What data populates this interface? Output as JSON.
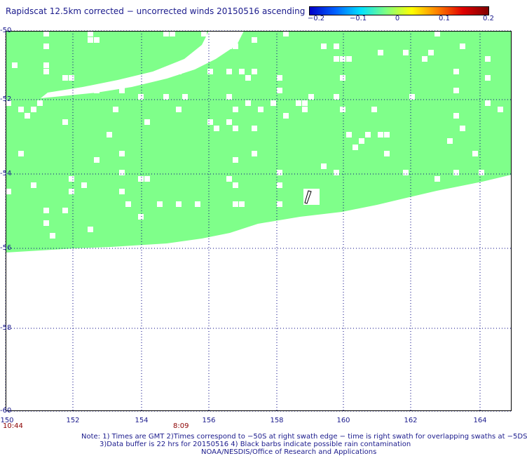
{
  "title": "Rapidscat 12.5km corrected − uncorrected winds 20150516 ascending",
  "colorbar": {
    "ticks": [
      "−0.2",
      "−0.1",
      "0",
      "0.1",
      "0.2"
    ],
    "colors": [
      "#0000c8",
      "#0060ff",
      "#00e0ff",
      "#80ff80",
      "#ffff00",
      "#ff8000",
      "#e00000",
      "#800000"
    ]
  },
  "map": {
    "lon_range": [
      150,
      165
    ],
    "lat_range": [
      -60,
      -50
    ],
    "lat_labels": [
      "-50",
      "-52",
      "-54",
      "-56",
      "-58",
      "-60"
    ],
    "lon_labels": [
      "150",
      "152",
      "154",
      "156",
      "158",
      "160",
      "162",
      "164"
    ],
    "swath_color": "#7fff8a",
    "grid_color": "#000080",
    "times": [
      {
        "lon": 150,
        "label": "10:44"
      },
      {
        "lon": 155,
        "label": "8:09"
      }
    ],
    "rain_barb": {
      "lon": 158.9,
      "lat": -54.7
    }
  },
  "notes": [
    "Note: 1) Times are GMT 2)Times correspond to −50S at right swath edge − time is right swath for overlapping swaths at −5DS",
    "3)Data buffer is 22 hrs for 20150516 4) Black barbs indicate possible rain contamination",
    "NOAA/NESDIS/Office of Research and Applications"
  ]
}
